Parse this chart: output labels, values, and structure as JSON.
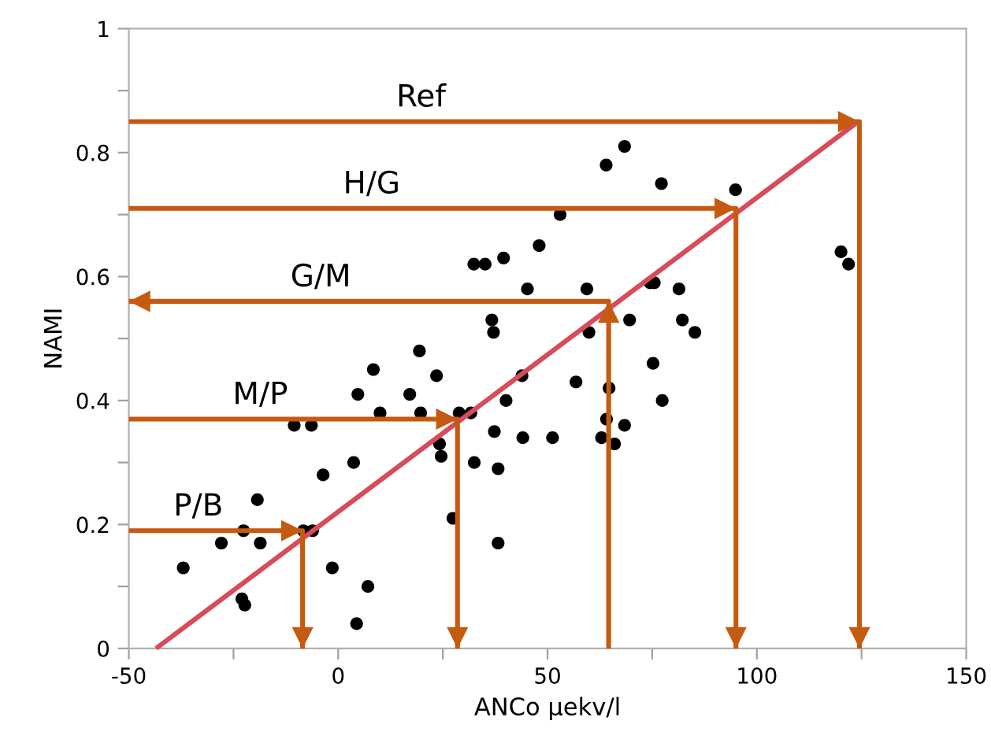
{
  "chart_data": {
    "type": "scatter",
    "xlabel": "ANCo µekv/l",
    "ylabel": "NAMI",
    "xlim": [
      -50,
      150
    ],
    "ylim": [
      0,
      1
    ],
    "xticks": [
      -50,
      {
        "value": -25,
        "label": null
      },
      0,
      {
        "value": 25,
        "label": null
      },
      50,
      {
        "value": 75,
        "label": null
      },
      100,
      {
        "value": 125,
        "label": null
      },
      150
    ],
    "yticks": [
      0,
      {
        "value": 0.1,
        "label": null
      },
      0.2,
      {
        "value": 0.3,
        "label": null
      },
      0.4,
      {
        "value": 0.5,
        "label": null
      },
      0.6,
      {
        "value": 0.7,
        "label": null
      },
      0.8,
      {
        "value": 0.9,
        "label": null
      },
      1
    ],
    "grid": false,
    "legend": false,
    "marker": "circle",
    "series": [
      {
        "color": "#000000",
        "x": [
          -37,
          -27.9,
          -22.6,
          -18.6,
          -19.3,
          -23,
          -22.3,
          -8.3,
          -6.1,
          -1.4,
          7.1,
          4.4,
          -3.6,
          3.7,
          -10.5,
          -6.4,
          4.7,
          8.4,
          10,
          17.1,
          19.4,
          19.7,
          23.5,
          24.2,
          24.6,
          27.4,
          28.9,
          31.7,
          32.5,
          37.3,
          38.2,
          38.2,
          40.1,
          43.9,
          44.1,
          51.2,
          36.7,
          37.1,
          32.4,
          35.1,
          39.5,
          48,
          45.2,
          53,
          68.4,
          64,
          77.2,
          94.9,
          59.4,
          74.5,
          75.5,
          81.4,
          120.1,
          121.9,
          59.9,
          69.6,
          82.2,
          85.2,
          75.2,
          56.8,
          64.7,
          77.4,
          64.1,
          68.4,
          62.9,
          66
        ],
        "values": [
          0.13,
          0.17,
          0.19,
          0.17,
          0.24,
          0.08,
          0.07,
          0.19,
          0.19,
          0.13,
          0.1,
          0.04,
          0.28,
          0.3,
          0.36,
          0.36,
          0.41,
          0.45,
          0.38,
          0.41,
          0.48,
          0.38,
          0.44,
          0.33,
          0.31,
          0.21,
          0.38,
          0.38,
          0.3,
          0.35,
          0.29,
          0.17,
          0.4,
          0.44,
          0.34,
          0.34,
          0.53,
          0.51,
          0.62,
          0.62,
          0.63,
          0.65,
          0.58,
          0.7,
          0.81,
          0.78,
          0.75,
          0.74,
          0.58,
          0.59,
          0.59,
          0.58,
          0.64,
          0.62,
          0.51,
          0.53,
          0.53,
          0.51,
          0.46,
          0.43,
          0.42,
          0.4,
          0.37,
          0.36,
          0.34,
          0.33
        ]
      },
      {
        "type": "line",
        "color": "#d94b5a",
        "marker": "none",
        "line_style": "solid",
        "x": [
          -43.5,
          124.2
        ],
        "values": [
          0,
          0.85
        ]
      },
      {
        "name": "Ref",
        "type": "line",
        "color": "#c55a11",
        "marker": "none",
        "line_style": "solid",
        "x": [
          -50,
          124.5,
          124.5
        ],
        "values": [
          0.85,
          0.85,
          0
        ]
      },
      {
        "name": "H/G",
        "type": "line",
        "color": "#c55a11",
        "marker": "none",
        "line_style": "solid",
        "x": [
          -50,
          95,
          95
        ],
        "values": [
          0.71,
          0.71,
          0
        ]
      },
      {
        "name": "G/M",
        "type": "line",
        "color": "#c55a11",
        "marker": "none",
        "line_style": "solid",
        "x": [
          64.6,
          64.6,
          -50
        ],
        "values": [
          0,
          0.56,
          0.56
        ]
      },
      {
        "name": "M/P",
        "type": "line",
        "color": "#c55a11",
        "marker": "none",
        "line_style": "solid",
        "x": [
          -50,
          28.5,
          28.5
        ],
        "values": [
          0.37,
          0.37,
          0
        ]
      },
      {
        "name": "P/B",
        "type": "line",
        "color": "#c55a11",
        "marker": "none",
        "line_style": "solid",
        "x": [
          -50,
          -8.5,
          -8.5
        ],
        "values": [
          0.19,
          0.19,
          0
        ]
      }
    ]
  }
}
